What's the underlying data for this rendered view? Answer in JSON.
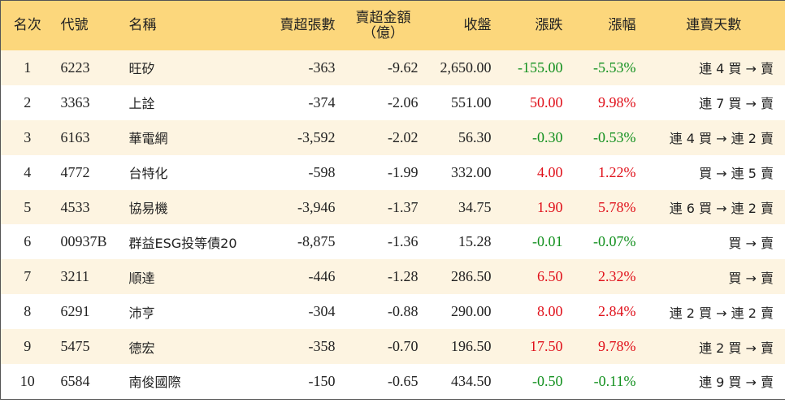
{
  "table": {
    "columns": [
      "名次",
      "代號",
      "名稱",
      "賣超張數",
      "賣超金額\n（億）",
      "收盤",
      "漲跌",
      "漲幅",
      "連賣天數"
    ],
    "rows": [
      [
        "1",
        "6223",
        "旺矽",
        "-363",
        "-9.62",
        "2,650.00",
        "-155.00",
        "-5.53%",
        "連 4 買 → 賣"
      ],
      [
        "2",
        "3363",
        "上詮",
        "-374",
        "-2.06",
        "551.00",
        "50.00",
        "9.98%",
        "連 7 買 → 賣"
      ],
      [
        "3",
        "6163",
        "華電網",
        "-3,592",
        "-2.02",
        "56.30",
        "-0.30",
        "-0.53%",
        "連 4 買 → 連 2 賣"
      ],
      [
        "4",
        "4772",
        "台特化",
        "-598",
        "-1.99",
        "332.00",
        "4.00",
        "1.22%",
        "買 → 連 5 賣"
      ],
      [
        "5",
        "4533",
        "協易機",
        "-3,946",
        "-1.37",
        "34.75",
        "1.90",
        "5.78%",
        "連 6 買 → 連 2 賣"
      ],
      [
        "6",
        "00937B",
        "群益ESG投等債20",
        "-8,875",
        "-1.36",
        "15.28",
        "-0.01",
        "-0.07%",
        "買 → 賣"
      ],
      [
        "7",
        "3211",
        "順達",
        "-446",
        "-1.28",
        "286.50",
        "6.50",
        "2.32%",
        "買 → 賣"
      ],
      [
        "8",
        "6291",
        "沛亨",
        "-304",
        "-0.88",
        "290.00",
        "8.00",
        "2.84%",
        "連 2 買 → 連 2 賣"
      ],
      [
        "9",
        "5475",
        "德宏",
        "-358",
        "-0.70",
        "196.50",
        "17.50",
        "9.78%",
        "連 2 買 → 賣"
      ],
      [
        "10",
        "6584",
        "南俊國際",
        "-150",
        "-0.65",
        "434.50",
        "-0.50",
        "-0.11%",
        "連 9 買 → 賣"
      ]
    ]
  }
}
